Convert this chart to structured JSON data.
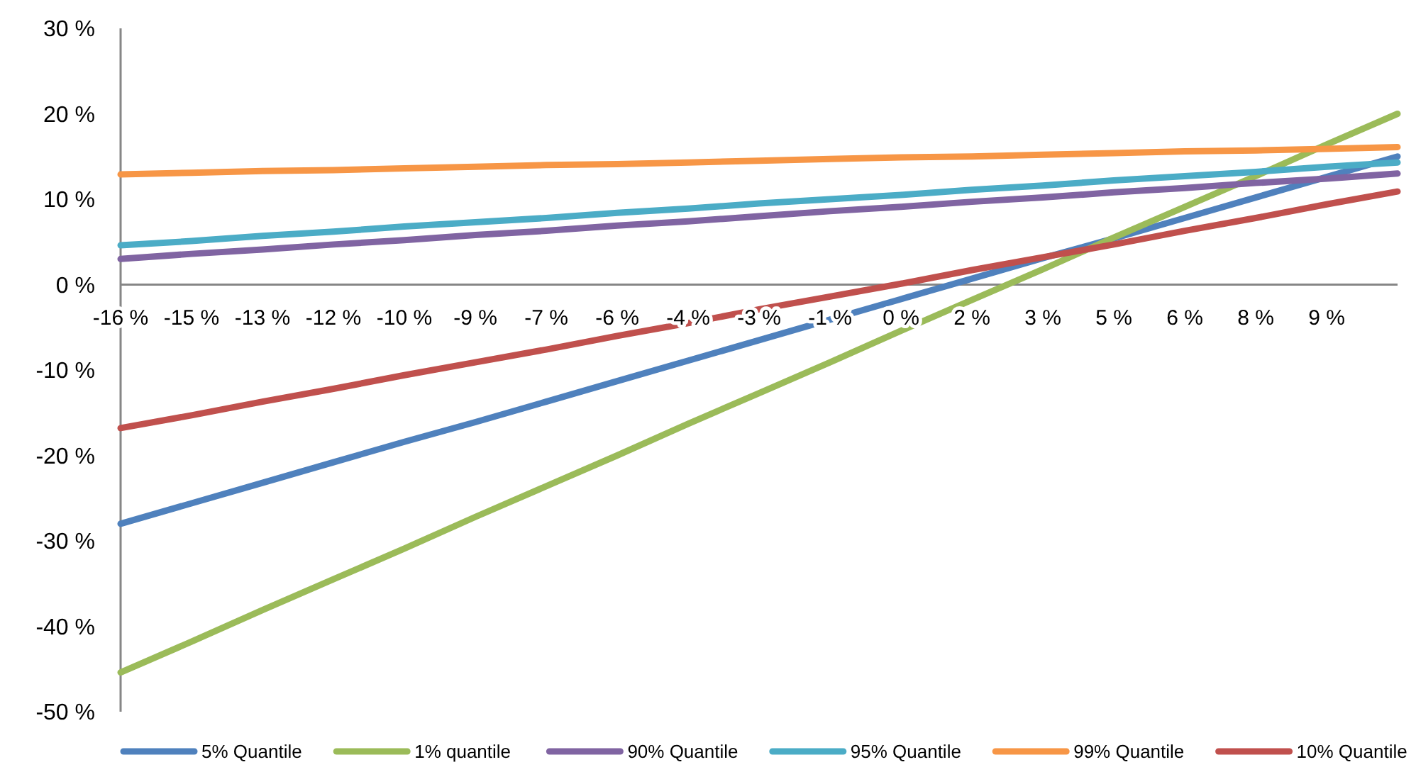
{
  "chart_data": {
    "type": "line",
    "categories": [
      "-16 %",
      "-15 %",
      "-13 %",
      "-12 %",
      "-10 %",
      "-9 %",
      "-7 %",
      "-6 %",
      "-4 %",
      "-3 %",
      "-1 %",
      "0 %",
      "2 %",
      "3 %",
      "5 %",
      "6 %",
      "8 %",
      "9 %",
      null
    ],
    "ylim": [
      -50,
      30
    ],
    "yticks": [
      {
        "value": -50,
        "label": "-50 %"
      },
      {
        "value": -40,
        "label": "-40 %"
      },
      {
        "value": -30,
        "label": "-30 %"
      },
      {
        "value": -20,
        "label": "-20 %"
      },
      {
        "value": -10,
        "label": "-10 %"
      },
      {
        "value": 0,
        "label": "0 %"
      },
      {
        "value": 10,
        "label": "10 %"
      },
      {
        "value": 20,
        "label": "20 %"
      },
      {
        "value": 30,
        "label": "30 %"
      }
    ],
    "grid": false,
    "legend": "bottom",
    "marker": "none",
    "line_style": "solid",
    "series": [
      {
        "name": "5% Quantile",
        "color": "#4f81bd",
        "values": [
          -28,
          -25.6,
          -23.2,
          -20.8,
          -18.4,
          -16.1,
          -13.7,
          -11.3,
          -8.9,
          -6.5,
          -4.1,
          -1.7,
          0.7,
          3.1,
          5.4,
          7.8,
          10.2,
          12.6,
          15
        ]
      },
      {
        "name": "1% quantile",
        "color": "#9bbb59",
        "values": [
          -45.4,
          -41.8,
          -38.1,
          -34.5,
          -30.9,
          -27.2,
          -23.6,
          -20,
          -16.3,
          -12.7,
          -9.1,
          -5.4,
          -1.8,
          1.8,
          5.5,
          9.1,
          12.7,
          16.4,
          20
        ]
      },
      {
        "name": "90% Quantile",
        "color": "#8064a2",
        "values": [
          3,
          3.6,
          4.1,
          4.7,
          5.2,
          5.8,
          6.3,
          6.9,
          7.4,
          8,
          8.6,
          9.1,
          9.7,
          10.2,
          10.8,
          11.3,
          11.9,
          12.4,
          13
        ]
      },
      {
        "name": "95% Quantile",
        "color": "#4bacc6",
        "values": [
          4.6,
          5.1,
          5.7,
          6.2,
          6.8,
          7.3,
          7.8,
          8.4,
          8.9,
          9.5,
          10,
          10.5,
          11.1,
          11.6,
          12.2,
          12.7,
          13.2,
          13.8,
          14.3
        ]
      },
      {
        "name": "99% Quantile",
        "color": "#f79646",
        "values": [
          12.9,
          13.1,
          13.3,
          13.4,
          13.6,
          13.8,
          14,
          14.1,
          14.3,
          14.5,
          14.7,
          14.9,
          15,
          15.2,
          15.4,
          15.6,
          15.7,
          15.9,
          16.1
        ]
      },
      {
        "name": "10% Quantile",
        "color": "#c0504d",
        "values": [
          -16.8,
          -15.3,
          -13.7,
          -12.2,
          -10.6,
          -9.1,
          -7.6,
          -6,
          -4.5,
          -2.9,
          -1.4,
          0.1,
          1.7,
          3.2,
          4.7,
          6.3,
          7.8,
          9.4,
          10.9
        ]
      }
    ]
  }
}
